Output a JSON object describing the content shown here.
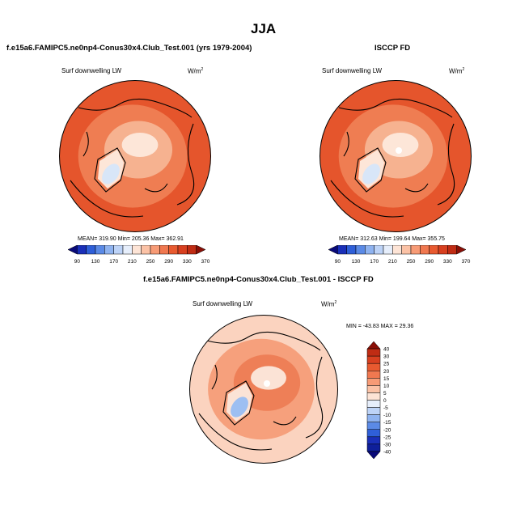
{
  "page_title": "JJA",
  "chart_data": [
    {
      "type": "polar_map",
      "title": "f.e15a6.FAMIPC5.ne0np4-Conus30x4.Club_Test.001 (yrs 1979-2004)",
      "variable": "Surf downwelling LW",
      "units_base": "W/m",
      "units_exp": "2",
      "stats": "MEAN= 319.90  Min= 205.36  Max= 362.91",
      "mean": 319.9,
      "min": 205.36,
      "max": 362.91,
      "colorbar_ticks": [
        "90",
        "130",
        "170",
        "210",
        "250",
        "290",
        "330",
        "370"
      ],
      "colorbar_colors": [
        "#0a0a7a",
        "#1a2fb8",
        "#2f5fd8",
        "#5b8ae6",
        "#8fb3f0",
        "#bdd3f7",
        "#e6eefb",
        "#fde4d6",
        "#fbc2a6",
        "#f79b76",
        "#f07850",
        "#e85a30",
        "#d84020",
        "#c02c14",
        "#8a0f06"
      ],
      "palette": {
        "outer": "#e5552c",
        "mid": "#ef7d52",
        "inner": "#f6b290",
        "center": "#fde6d8",
        "ice": "#d8e6f8"
      }
    },
    {
      "type": "polar_map",
      "title": "ISCCP FD",
      "variable": "Surf downwelling LW",
      "units_base": "W/m",
      "units_exp": "2",
      "stats": "MEAN= 312.63  Min= 199.64  Max= 355.75",
      "mean": 312.63,
      "min": 199.64,
      "max": 355.75,
      "colorbar_ticks": [
        "90",
        "130",
        "170",
        "210",
        "250",
        "290",
        "330",
        "370"
      ],
      "colorbar_colors": [
        "#0a0a7a",
        "#1a2fb8",
        "#2f5fd8",
        "#5b8ae6",
        "#8fb3f0",
        "#bdd3f7",
        "#e6eefb",
        "#fde4d6",
        "#fbc2a6",
        "#f79b76",
        "#f07850",
        "#e85a30",
        "#d84020",
        "#c02c14",
        "#8a0f06"
      ],
      "palette": {
        "outer": "#e5552c",
        "mid": "#ef7d52",
        "inner": "#f6b290",
        "center": "#fde6d8",
        "ice": "#d8e6f8"
      }
    },
    {
      "type": "polar_map_difference",
      "title": "f.e15a6.FAMIPC5.ne0np4-Conus30x4.Club_Test.001 - ISCCP FD",
      "variable": "Surf downwelling LW",
      "units_base": "W/m",
      "units_exp": "2",
      "stats": "MIN = -43.83 MAX =  29.36",
      "min": -43.83,
      "max": 29.36,
      "colorbar_ticks": [
        "40",
        "30",
        "25",
        "20",
        "15",
        "10",
        "5",
        "0",
        "-5",
        "-10",
        "-15",
        "-20",
        "-25",
        "-30",
        "-40"
      ],
      "colorbar_colors": [
        "#8a0f06",
        "#c02c14",
        "#d84020",
        "#e85a30",
        "#f07850",
        "#f79b76",
        "#fbc2a6",
        "#fde4d6",
        "#e6eefb",
        "#bdd3f7",
        "#8fb3f0",
        "#5b8ae6",
        "#2f5fd8",
        "#1a2fb8",
        "#0f1f9a",
        "#0a0a7a"
      ],
      "palette": {
        "outer": "#fbd3bf",
        "mid": "#f6a07c",
        "inner": "#ee7f57",
        "center": "#fbe3d6",
        "ice": "#9dbff2"
      }
    }
  ]
}
